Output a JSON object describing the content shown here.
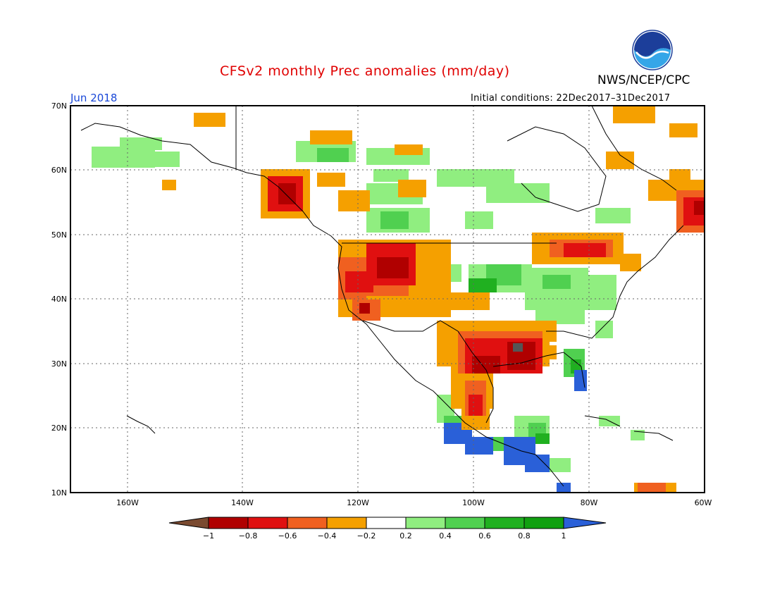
{
  "header": {
    "title": "CFSv2 monthly Prec anomalies (mm/day)",
    "agency": "NWS/NCEP/CPC",
    "month": "Jun 2018",
    "initial_conditions": "Initial conditions: 22Dec2017–31Dec2017",
    "logo_text": "NOAA"
  },
  "axes": {
    "lat_labels": [
      "70N",
      "60N",
      "50N",
      "40N",
      "30N",
      "20N",
      "10N"
    ],
    "lon_labels": [
      "160W",
      "140W",
      "120W",
      "100W",
      "80W",
      "60W"
    ]
  },
  "colorbar": {
    "labels": [
      "−1",
      "−0.8",
      "−0.6",
      "−0.4",
      "−0.2",
      "0.2",
      "0.4",
      "0.6",
      "0.8",
      "1"
    ],
    "colors": [
      "#7a4a30",
      "#b00000",
      "#e01010",
      "#f06020",
      "#f5a000",
      "#ffffff",
      "#90ee80",
      "#50d050",
      "#20b020",
      "#10a010",
      "#2a60d8"
    ]
  }
}
